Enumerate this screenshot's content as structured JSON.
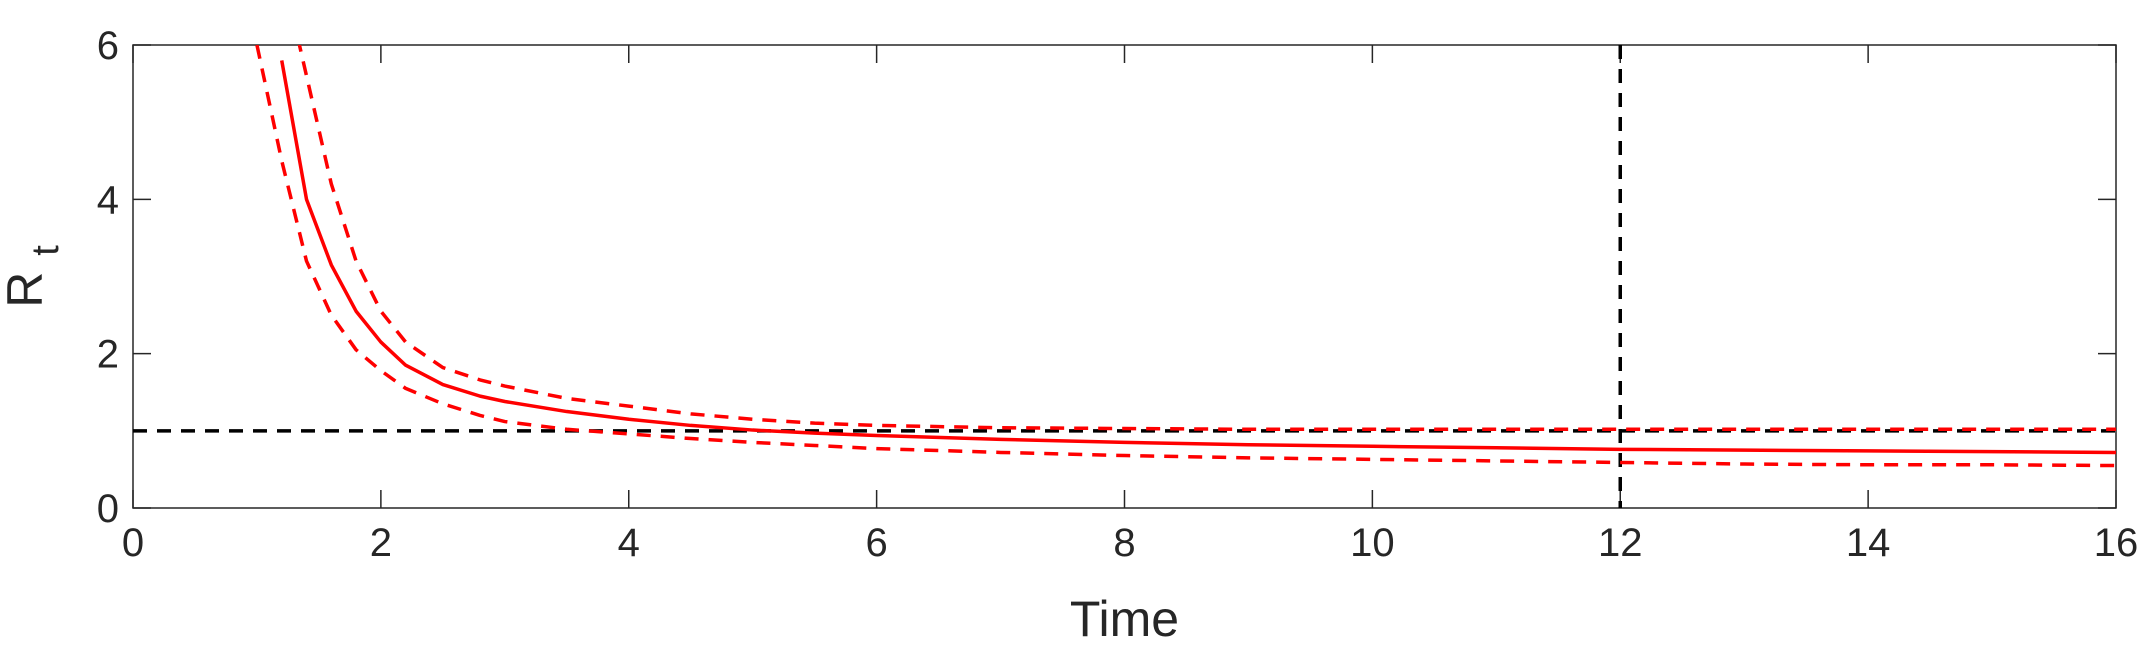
{
  "chart_data": {
    "type": "line",
    "title": "",
    "xlabel": "Time",
    "ylabel": {
      "main": "R",
      "subscript": "t"
    },
    "xlim": [
      0,
      16
    ],
    "ylim": [
      0,
      6
    ],
    "xticks": [
      "0",
      "2",
      "4",
      "6",
      "8",
      "10",
      "12",
      "14",
      "16"
    ],
    "yticks": [
      "0",
      "2",
      "4",
      "6"
    ],
    "grid": false,
    "legend": "none",
    "reference_lines": [
      {
        "type": "horizontal",
        "value": 1,
        "color": "#000000",
        "style": "dashed"
      },
      {
        "type": "vertical",
        "value": 12,
        "color": "#000000",
        "style": "dashed"
      }
    ],
    "x": [
      1.0,
      1.2,
      1.4,
      1.6,
      1.8,
      2.0,
      2.2,
      2.5,
      2.8,
      3.0,
      3.5,
      4.0,
      4.5,
      5.0,
      5.5,
      6.0,
      7.0,
      8.0,
      9.0,
      10.0,
      11.0,
      12.0,
      13.0,
      14.0,
      15.0,
      16.0
    ],
    "series": [
      {
        "role": "upper-bound",
        "color": "#ff0000",
        "style": "dashed",
        "values": [
          null,
          7.0,
          5.6,
          4.2,
          3.2,
          2.55,
          2.15,
          1.82,
          1.66,
          1.58,
          1.42,
          1.32,
          1.22,
          1.15,
          1.1,
          1.07,
          1.04,
          1.03,
          1.02,
          1.02,
          1.02,
          1.02,
          1.02,
          1.02,
          1.02,
          1.02
        ]
      },
      {
        "role": "estimate",
        "color": "#ff0000",
        "style": "solid",
        "values": [
          null,
          5.8,
          4.0,
          3.15,
          2.55,
          2.15,
          1.85,
          1.6,
          1.45,
          1.38,
          1.25,
          1.15,
          1.07,
          1.01,
          0.97,
          0.94,
          0.89,
          0.85,
          0.82,
          0.8,
          0.78,
          0.76,
          0.75,
          0.74,
          0.73,
          0.72
        ]
      },
      {
        "role": "lower-bound",
        "color": "#ff0000",
        "style": "dashed",
        "values": [
          6.0,
          4.5,
          3.2,
          2.5,
          2.05,
          1.78,
          1.55,
          1.35,
          1.2,
          1.12,
          1.02,
          0.96,
          0.9,
          0.85,
          0.81,
          0.77,
          0.72,
          0.68,
          0.65,
          0.63,
          0.61,
          0.59,
          0.57,
          0.56,
          0.56,
          0.55
        ]
      }
    ]
  }
}
